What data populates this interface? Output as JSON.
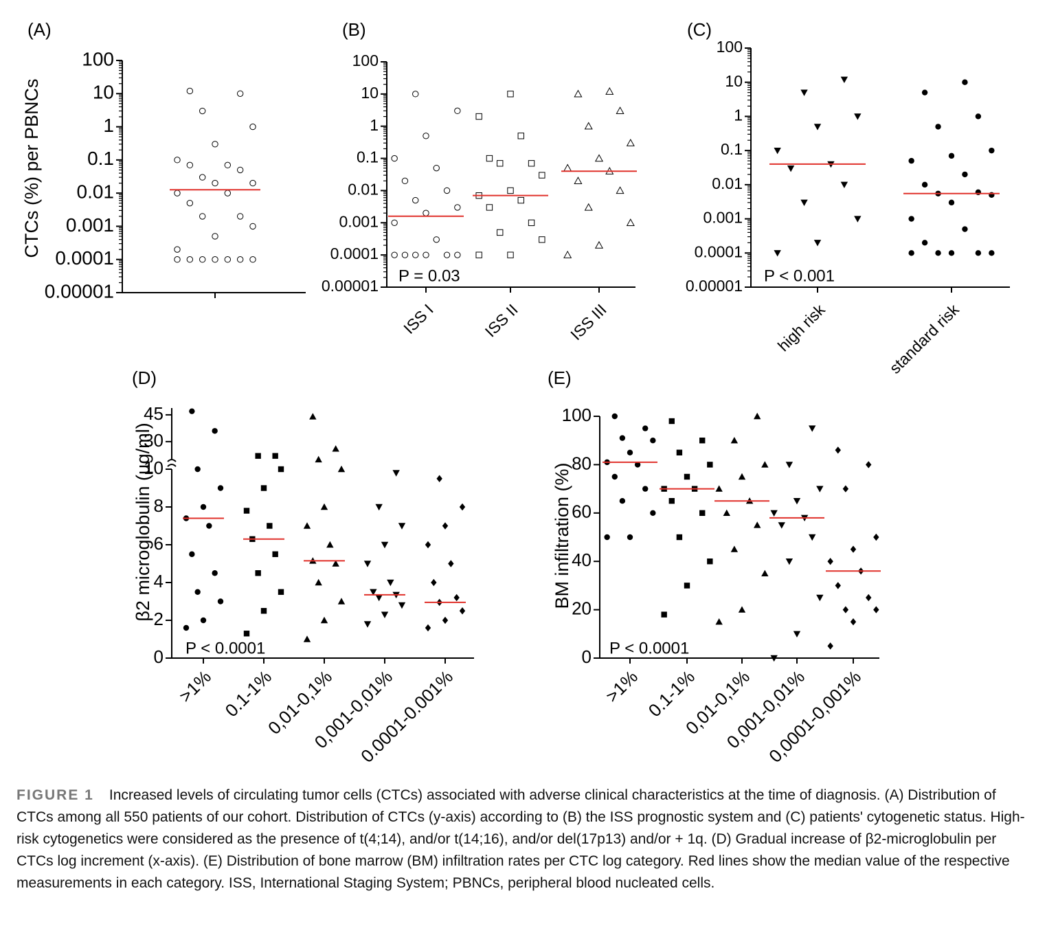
{
  "chart_data": [
    {
      "type": "strip",
      "label": "(A)",
      "ylabel": "CTCs (%) per PBNCs",
      "log": true,
      "ylim": [
        1e-05,
        100
      ],
      "yticks": [
        100,
        10,
        1,
        0.1,
        0.01,
        0.001,
        0.0001,
        1e-05
      ],
      "categories": [
        null
      ],
      "markers": [
        "circle-open"
      ],
      "median_color": "#e0302a",
      "medians": [
        0.0126
      ],
      "points": [
        [
          0.0001,
          0.0001,
          0.0001,
          0.0001,
          0.0001,
          0.0001,
          0.0001,
          0.0002,
          0.0005,
          0.001,
          0.002,
          0.002,
          0.005,
          0.01,
          0.01,
          0.02,
          0.02,
          0.03,
          0.05,
          0.07,
          0.07,
          0.1,
          0.3,
          1,
          3,
          10,
          12
        ]
      ]
    },
    {
      "type": "strip",
      "label": "(B)",
      "annotation": "P = 0.03",
      "log": true,
      "ylim": [
        1e-05,
        100
      ],
      "yticks": [
        100,
        10,
        1,
        0.1,
        0.01,
        0.001,
        0.0001,
        1e-05
      ],
      "categories": [
        "ISS I",
        "ISS II",
        "ISS III"
      ],
      "markers": [
        "circle-open",
        "square-open",
        "triangle-open"
      ],
      "median_color": "#e0302a",
      "medians": [
        0.0016,
        0.007,
        0.04
      ],
      "points": [
        [
          0.0001,
          0.0001,
          0.0001,
          0.0001,
          0.0001,
          0.0001,
          0.0003,
          0.001,
          0.002,
          0.003,
          0.005,
          0.01,
          0.02,
          0.05,
          0.1,
          0.5,
          3,
          10
        ],
        [
          0.0001,
          0.0001,
          0.0003,
          0.0005,
          0.001,
          0.003,
          0.005,
          0.007,
          0.01,
          0.03,
          0.07,
          0.07,
          0.1,
          0.5,
          2,
          10
        ],
        [
          0.0001,
          0.0002,
          0.001,
          0.003,
          0.01,
          0.02,
          0.04,
          0.05,
          0.1,
          0.3,
          1,
          3,
          10,
          12
        ]
      ]
    },
    {
      "type": "strip",
      "label": "(C)",
      "annotation": "P < 0.001",
      "log": true,
      "ylim": [
        1e-05,
        100
      ],
      "yticks": [
        100,
        10,
        1,
        0.1,
        0.01,
        0.001,
        0.0001,
        1e-05
      ],
      "categories": [
        "high risk",
        "standard risk"
      ],
      "markers": [
        "triangle-down",
        "circle"
      ],
      "median_color": "#e0302a",
      "medians": [
        0.04,
        0.0055
      ],
      "points": [
        [
          0.0001,
          0.0002,
          0.001,
          0.003,
          0.01,
          0.03,
          0.04,
          0.1,
          0.5,
          1,
          5,
          12
        ],
        [
          0.0001,
          0.0001,
          0.0001,
          0.0001,
          0.0001,
          0.0002,
          0.0005,
          0.001,
          0.003,
          0.005,
          0.0055,
          0.006,
          0.01,
          0.02,
          0.05,
          0.07,
          0.1,
          0.5,
          1,
          5,
          10
        ]
      ]
    },
    {
      "type": "strip",
      "label": "(D)",
      "ylabel": "β2 microglobulin (µg/ml)",
      "annotation": "P < 0.0001",
      "log": false,
      "ylim": [
        0,
        10
      ],
      "yticks": [
        0,
        2,
        4,
        6,
        8,
        10
      ],
      "ylim_upper": [
        18.8,
        48.8
      ],
      "yticks_upper": [
        30,
        45
      ],
      "categories": [
        ">1%",
        "0.1-1%",
        "0,01-0,1%",
        "0,001-0,01%",
        "0.0001-0.001%"
      ],
      "markers": [
        "circle",
        "square",
        "triangle",
        "triangle-down",
        "diamond"
      ],
      "median_color": "#e0302a",
      "medians": [
        7.4,
        6.3,
        5.15,
        3.35,
        2.95
      ],
      "points": [
        [
          1.6,
          2,
          3,
          3.5,
          4.5,
          5.5,
          7,
          7.4,
          8,
          9,
          10,
          36,
          47
        ],
        [
          1.3,
          2.5,
          3.5,
          4.5,
          5.5,
          6.3,
          7,
          7.8,
          9,
          10,
          22,
          22
        ],
        [
          1,
          2,
          3,
          4,
          5,
          5.15,
          6,
          7,
          8,
          10,
          20,
          26,
          44
        ],
        [
          1.8,
          2.3,
          2.8,
          3.2,
          3.35,
          3.5,
          4,
          5,
          6,
          7,
          8,
          9.8
        ],
        [
          1.6,
          2,
          2.5,
          2.95,
          3.2,
          4,
          5,
          6,
          7,
          8,
          9.5
        ]
      ]
    },
    {
      "type": "strip",
      "label": "(E)",
      "ylabel": "BM infiltration (%)",
      "annotation": "P < 0.0001",
      "log": false,
      "ylim": [
        0,
        100
      ],
      "yticks": [
        0,
        20,
        40,
        60,
        80,
        100
      ],
      "categories": [
        ">1%",
        "0.1-1%",
        "0,01-0,1%",
        "0,001-0,01%",
        "0,0001-0,001%"
      ],
      "markers": [
        "circle",
        "square",
        "triangle",
        "triangle-down",
        "diamond"
      ],
      "median_color": "#e0302a",
      "medians": [
        81,
        70,
        65,
        58,
        36
      ],
      "points": [
        [
          50,
          50,
          60,
          65,
          70,
          75,
          80,
          81,
          85,
          90,
          91,
          95,
          100
        ],
        [
          18,
          30,
          40,
          50,
          60,
          65,
          70,
          70,
          75,
          80,
          85,
          90,
          98
        ],
        [
          15,
          20,
          35,
          45,
          55,
          60,
          65,
          70,
          75,
          80,
          90,
          100
        ],
        [
          0,
          10,
          25,
          40,
          50,
          55,
          58,
          60,
          65,
          70,
          80,
          95
        ],
        [
          5,
          15,
          20,
          20,
          25,
          30,
          36,
          40,
          45,
          50,
          70,
          80,
          86
        ]
      ]
    }
  ],
  "caption": {
    "label": "FIGURE 1",
    "text": "Increased levels of circulating tumor cells (CTCs) associated with adverse clinical characteristics at the time of diagnosis. (A) Distribution of CTCs among all 550 patients of our cohort. Distribution of CTCs (y-axis) according to (B) the ISS prognostic system and (C) patients' cytogenetic status. High-risk cytogenetics were considered as the presence of t(4;14), and/or t(14;16), and/or del(17p13) and/or + 1q. (D) Gradual increase of β2-microglobulin per CTCs log increment (x-axis). (E) Distribution of bone marrow (BM) infiltration rates per CTC log category. Red lines show the median value of the respective measurements in each category. ISS, International Staging System; PBNCs, peripheral blood nucleated cells."
  }
}
